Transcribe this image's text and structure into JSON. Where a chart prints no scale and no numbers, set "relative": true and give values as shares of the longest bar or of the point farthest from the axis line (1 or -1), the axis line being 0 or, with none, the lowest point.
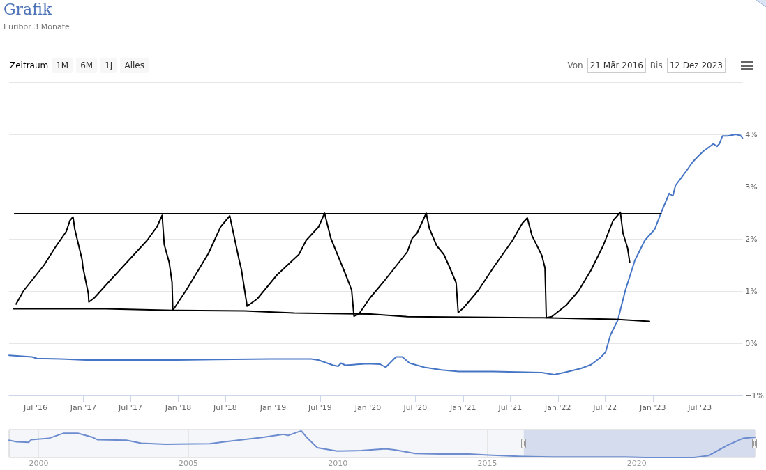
{
  "chart_data": [
    {
      "type": "line",
      "title": "Grafik",
      "subtitle": "Euribor 3 Monate",
      "annotations": [
        "Zeitraum",
        "1M",
        "6M",
        "1J",
        "Alles",
        "Von",
        "21 Mär 2016",
        "Bis",
        "12 Dez 2023"
      ],
      "xlim": [
        "2016-03-21",
        "2023-12-12"
      ],
      "xticks": [
        {
          "value": "2016-07-01",
          "label": "Jul '16"
        },
        {
          "value": "2017-01-01",
          "label": "Jan '17"
        },
        {
          "value": "2017-07-01",
          "label": "Jul '17"
        },
        {
          "value": "2018-01-01",
          "label": "Jan '18"
        },
        {
          "value": "2018-07-01",
          "label": "Jul '18"
        },
        {
          "value": "2019-01-01",
          "label": "Jan '19"
        },
        {
          "value": "2019-07-01",
          "label": "Jul '19"
        },
        {
          "value": "2020-01-01",
          "label": "Jan '20"
        },
        {
          "value": "2020-07-01",
          "label": "Jul '20"
        },
        {
          "value": "2021-01-01",
          "label": "Jan '21"
        },
        {
          "value": "2021-07-01",
          "label": "Jul '21"
        },
        {
          "value": "2022-01-01",
          "label": "Jan '22"
        },
        {
          "value": "2022-07-01",
          "label": "Jul '22"
        },
        {
          "value": "2023-01-01",
          "label": "Jan '23"
        },
        {
          "value": "2023-07-01",
          "label": "Jul '23"
        }
      ],
      "ylim": [
        -1,
        5
      ],
      "yticks": [
        {
          "value": -1,
          "label": "−1%"
        },
        {
          "value": 0,
          "label": "0%"
        },
        {
          "value": 1,
          "label": "1%"
        },
        {
          "value": 2,
          "label": "2%"
        },
        {
          "value": 3,
          "label": "3%"
        },
        {
          "value": 4,
          "label": "4%"
        },
        {
          "value": 5,
          "label": null
        }
      ],
      "grid": "y",
      "marker": "none",
      "series": [
        {
          "color": "#4575c4",
          "x": [
            "2016-03-21",
            "2016-06-17",
            "2016-07-06",
            "2016-10-08",
            "2017-01-10",
            "2017-06-29",
            "2017-12-06",
            "2018-05-25",
            "2018-12-18",
            "2019-05-27",
            "2019-06-24",
            "2019-08-20",
            "2019-09-08",
            "2019-09-19",
            "2019-10-06",
            "2019-12-30",
            "2020-02-17",
            "2020-03-09",
            "2020-04-18",
            "2020-05-12",
            "2020-06-09",
            "2020-08-05",
            "2020-10-10",
            "2020-12-15",
            "2021-04-26",
            "2021-10-31",
            "2021-12-17",
            "2022-02-02",
            "2022-03-31",
            "2022-05-08",
            "2022-06-14",
            "2022-07-03",
            "2022-07-22",
            "2022-08-19",
            "2022-09-17",
            "2022-10-24",
            "2022-12-01",
            "2023-01-08",
            "2023-02-05",
            "2023-03-05",
            "2023-03-19",
            "2023-03-29",
            "2023-05-10",
            "2023-06-03",
            "2023-06-26",
            "2023-07-15",
            "2023-08-22",
            "2023-09-05",
            "2023-09-14",
            "2023-09-26",
            "2023-10-17",
            "2023-11-15",
            "2023-12-04",
            "2023-12-12"
          ],
          "values": [
            -0.23,
            -0.26,
            -0.29,
            -0.3,
            -0.32,
            -0.32,
            -0.32,
            -0.31,
            -0.3,
            -0.3,
            -0.32,
            -0.42,
            -0.44,
            -0.38,
            -0.42,
            -0.39,
            -0.4,
            -0.46,
            -0.26,
            -0.26,
            -0.38,
            -0.46,
            -0.51,
            -0.54,
            -0.54,
            -0.56,
            -0.6,
            -0.55,
            -0.48,
            -0.41,
            -0.27,
            -0.17,
            0.16,
            0.44,
            1.01,
            1.59,
            1.97,
            2.18,
            2.54,
            2.87,
            2.82,
            3.02,
            3.3,
            3.47,
            3.59,
            3.68,
            3.82,
            3.77,
            3.82,
            3.97,
            3.97,
            4.0,
            3.98,
            3.93
          ]
        },
        {
          "color": "#000000",
          "x": [
            "2016-04-11",
            "2023-02-02"
          ],
          "values": [
            2.48,
            2.48
          ]
        },
        {
          "color": "#000000",
          "x": [
            "2016-04-07",
            "2017-03-27",
            "2017-12-11",
            "2018-09-13",
            "2019-03-22",
            "2020-01-10",
            "2020-06-01",
            "2021-10-31",
            "2022-08-10",
            "2022-12-19"
          ],
          "values": [
            0.66,
            0.66,
            0.63,
            0.62,
            0.58,
            0.56,
            0.51,
            0.49,
            0.46,
            0.42
          ]
        },
        {
          "color": "#000000",
          "x": [
            "2016-04-17",
            "2016-05-15",
            "2016-08-03",
            "2016-09-15",
            "2016-10-27",
            "2016-11-10",
            "2016-11-22",
            "2016-11-29",
            "2016-12-27",
            "2016-12-30",
            "2017-01-20",
            "2017-01-22",
            "2017-02-12",
            "2017-04-15",
            "2017-09-03",
            "2017-10-11",
            "2017-10-31",
            "2017-11-08",
            "2017-11-27",
            "2017-12-08",
            "2017-12-11",
            "2018-02-01",
            "2018-04-27",
            "2018-06-13",
            "2018-07-18",
            "2018-08-23",
            "2018-09-01",
            "2018-09-23",
            "2018-11-01",
            "2019-01-16",
            "2019-04-10",
            "2019-05-08",
            "2019-06-25",
            "2019-07-18",
            "2019-08-11",
            "2019-10-06",
            "2019-10-30",
            "2019-11-08",
            "2019-11-27",
            "2020-01-09",
            "2020-03-03",
            "2020-05-31",
            "2020-06-19",
            "2020-07-08",
            "2020-08-12",
            "2020-08-24",
            "2020-09-21",
            "2020-10-19",
            "2020-11-07",
            "2020-12-05",
            "2020-12-13",
            "2021-01-03",
            "2021-02-28",
            "2021-04-26",
            "2021-07-10",
            "2021-08-17",
            "2021-09-05",
            "2021-09-23",
            "2021-10-31",
            "2021-11-12",
            "2021-11-17",
            "2021-12-08",
            "2022-02-02",
            "2022-03-22",
            "2022-05-08",
            "2022-06-24",
            "2022-08-01",
            "2022-08-29",
            "2022-09-08",
            "2022-09-26",
            "2022-10-04"
          ],
          "values": [
            0.75,
            1.0,
            1.5,
            1.84,
            2.14,
            2.35,
            2.42,
            2.18,
            1.6,
            1.46,
            0.95,
            0.79,
            0.87,
            1.21,
            1.97,
            2.23,
            2.45,
            1.89,
            1.55,
            1.17,
            0.63,
            1.02,
            1.72,
            2.23,
            2.44,
            1.6,
            1.41,
            0.71,
            0.85,
            1.31,
            1.7,
            1.97,
            2.23,
            2.49,
            2.01,
            1.33,
            1.02,
            0.52,
            0.56,
            0.87,
            1.19,
            1.75,
            2.01,
            2.11,
            2.49,
            2.2,
            1.87,
            1.7,
            1.49,
            1.16,
            0.59,
            0.68,
            1.01,
            1.44,
            1.97,
            2.3,
            2.4,
            2.06,
            1.68,
            1.44,
            0.49,
            0.51,
            0.73,
            1.01,
            1.4,
            1.87,
            2.35,
            2.51,
            2.11,
            1.82,
            1.55
          ]
        }
      ]
    },
    {
      "type": "line",
      "relative": true,
      "xlim": [
        "1999-01-04",
        "2023-12-12"
      ],
      "xticks": [
        {
          "value": "2000-01-01",
          "label": "2000"
        },
        {
          "value": "2005-01-01",
          "label": "2005"
        },
        {
          "value": "2010-01-01",
          "label": "2010"
        },
        {
          "value": "2015-01-01",
          "label": "2015"
        },
        {
          "value": "2020-01-01",
          "label": "2020"
        }
      ],
      "grid": "x",
      "marker": "none",
      "bands": [
        {
          "axis": "x",
          "from": "2016-03-21",
          "to": "2023-12-12",
          "color": "#d5dcee"
        }
      ],
      "series": [
        {
          "color": "#6d8ccf",
          "x": [
            "1999-01-04",
            "1999-04-05",
            "1999-09-01",
            "1999-10-01",
            "2000-05-01",
            "2000-10-27",
            "2001-04-23",
            "2001-10-20",
            "2001-12-17",
            "2002-12-08",
            "2003-06-05",
            "2004-04-01",
            "2005-09-20",
            "2006-03-17",
            "2007-07-09",
            "2008-03-07",
            "2008-05-04",
            "2008-09-02",
            "2008-10-12",
            "2008-12-28",
            "2009-04-27",
            "2009-12-24",
            "2010-10-16",
            "2011-08-11",
            "2011-12-09",
            "2012-08-03",
            "2013-05-30",
            "2014-05-22",
            "2015-01-15",
            "2016-03-10",
            "2017-03-05",
            "2019-08-15",
            "2020-04-12",
            "2021-11-28",
            "2022-05-27",
            "2023-01-23",
            "2023-07-19",
            "2023-12-12"
          ],
          "values": [
            0.65,
            0.59,
            0.57,
            0.67,
            0.72,
            0.91,
            0.91,
            0.76,
            0.67,
            0.65,
            0.54,
            0.5,
            0.52,
            0.59,
            0.76,
            0.87,
            0.83,
            0.96,
            1,
            0.72,
            0.37,
            0.24,
            0.26,
            0.33,
            0.28,
            0.15,
            0.13,
            0.13,
            0.09,
            0.04,
            0.02,
            0.02,
            0,
            0,
            0.07,
            0.48,
            0.72,
            0.76
          ]
        }
      ]
    }
  ]
}
